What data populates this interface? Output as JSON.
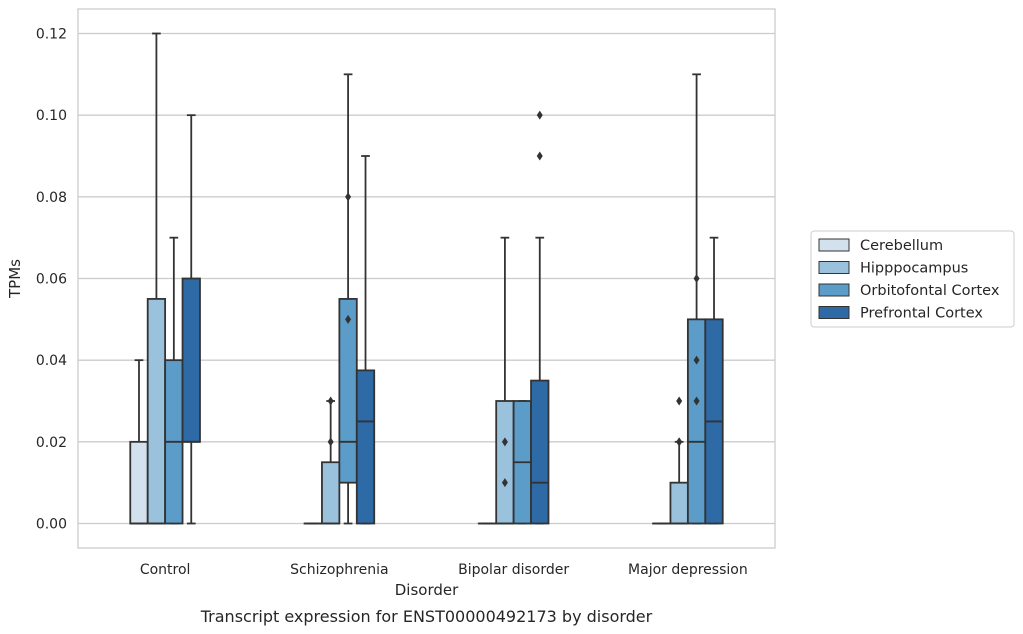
{
  "chart_data": {
    "type": "box",
    "xlabel": "Disorder",
    "ylabel": "TPMs",
    "caption": "Transcript expression for ENST00000492173 by disorder",
    "ylim": [
      -0.006,
      0.126
    ],
    "yticks": [
      "0.00",
      "0.02",
      "0.04",
      "0.06",
      "0.08",
      "0.10",
      "0.12"
    ],
    "grid": true,
    "legend_position": "right",
    "categories": [
      "Control",
      "Schizophrenia",
      "Bipolar disorder",
      "Major depression"
    ],
    "series": [
      {
        "name": "Cerebellum",
        "color": "#d3e1ef",
        "boxes": [
          {
            "whislo": 0,
            "q1": 0,
            "med": 0,
            "q3": 0.02,
            "whishi": 0.04,
            "fliers": []
          },
          {
            "whislo": 0,
            "q1": 0,
            "med": 0,
            "q3": 0,
            "whishi": 0,
            "fliers": []
          },
          {
            "whislo": 0,
            "q1": 0,
            "med": 0,
            "q3": 0,
            "whishi": 0,
            "fliers": []
          },
          {
            "whislo": 0,
            "q1": 0,
            "med": 0,
            "q3": 0,
            "whishi": 0,
            "fliers": []
          }
        ]
      },
      {
        "name": "Hipppocampus",
        "color": "#9ac2dd",
        "boxes": [
          {
            "whislo": 0,
            "q1": 0,
            "med": 0,
            "q3": 0.055,
            "whishi": 0.12,
            "fliers": []
          },
          {
            "whislo": 0,
            "q1": 0,
            "med": 0,
            "q3": 0.015,
            "whishi": 0.03,
            "fliers": [
              0.02,
              0.03
            ]
          },
          {
            "whislo": 0,
            "q1": 0,
            "med": 0,
            "q3": 0.03,
            "whishi": 0.07,
            "fliers": [
              0.01,
              0.02
            ]
          },
          {
            "whislo": 0,
            "q1": 0,
            "med": 0,
            "q3": 0.01,
            "whishi": 0.02,
            "fliers": [
              0.02,
              0.02,
              0.03
            ]
          }
        ]
      },
      {
        "name": "Orbitofontal Cortex",
        "color": "#5b9cc9",
        "boxes": [
          {
            "whislo": 0,
            "q1": 0,
            "med": 0.02,
            "q3": 0.04,
            "whishi": 0.07,
            "fliers": []
          },
          {
            "whislo": 0,
            "q1": 0.01,
            "med": 0.02,
            "q3": 0.055,
            "whishi": 0.11,
            "fliers": [
              0.05,
              0.08
            ]
          },
          {
            "whislo": 0,
            "q1": 0,
            "med": 0.015,
            "q3": 0.03,
            "whishi": 0.03,
            "fliers": []
          },
          {
            "whislo": 0,
            "q1": 0,
            "med": 0.02,
            "q3": 0.05,
            "whishi": 0.11,
            "fliers": [
              0.03,
              0.04,
              0.06
            ]
          }
        ]
      },
      {
        "name": "Prefrontal Cortex",
        "color": "#2d6aa6",
        "boxes": [
          {
            "whislo": 0,
            "q1": 0.02,
            "med": 0.02,
            "q3": 0.06,
            "whishi": 0.1,
            "fliers": []
          },
          {
            "whislo": 0,
            "q1": 0,
            "med": 0.025,
            "q3": 0.0375,
            "whishi": 0.09,
            "fliers": []
          },
          {
            "whislo": 0,
            "q1": 0,
            "med": 0.01,
            "q3": 0.035,
            "whishi": 0.07,
            "fliers": [
              0.09,
              0.1
            ]
          },
          {
            "whislo": 0,
            "q1": 0,
            "med": 0.025,
            "q3": 0.05,
            "whishi": 0.07,
            "fliers": []
          }
        ]
      }
    ]
  }
}
